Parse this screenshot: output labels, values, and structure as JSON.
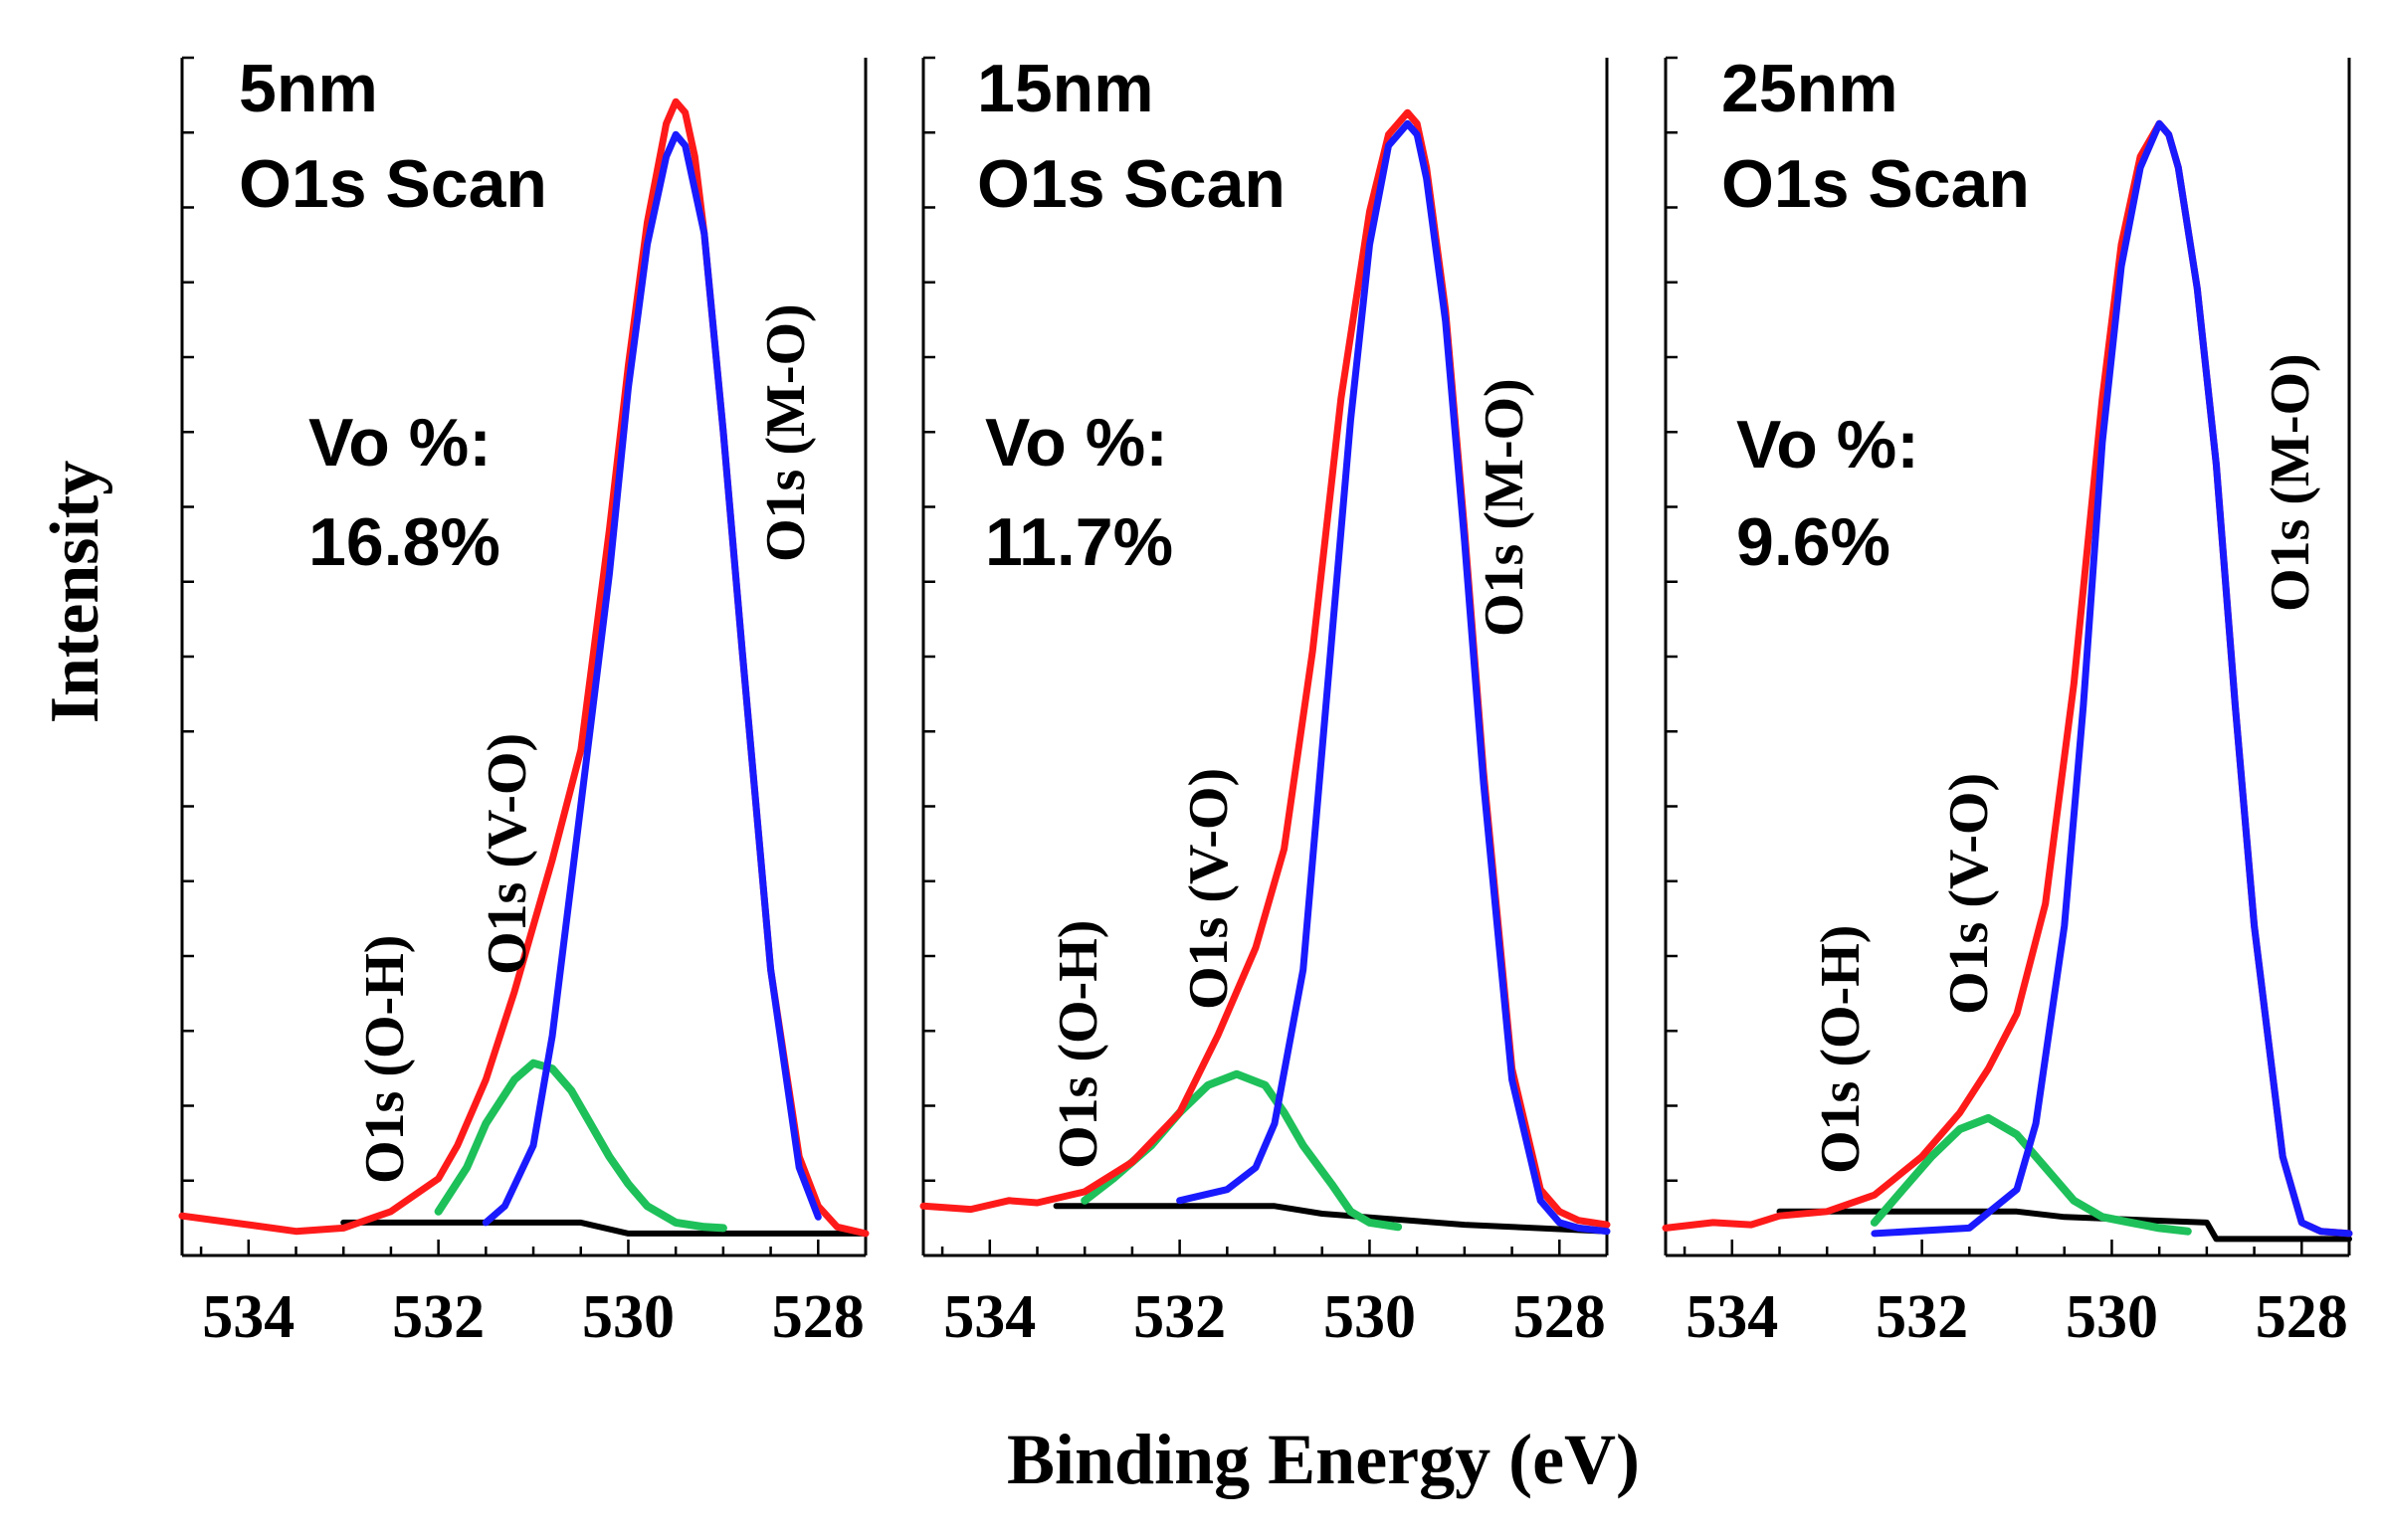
{
  "figure": {
    "ylabel": "Intensity",
    "xlabel": "Binding Energy (eV)"
  },
  "colors": {
    "raw": "#ff1a1a",
    "m_o": "#1a1aff",
    "v_o": "#1ec05a",
    "baseline": "#000000"
  },
  "chart_data": [
    {
      "type": "line",
      "title": "5nm",
      "subtitle": "O1s Scan",
      "vo_label": "Vo %:",
      "vo_value": "16.8%",
      "peak_labels": {
        "oh": "O1s (O-H)",
        "vo": "O1s (V-O)",
        "mo": "O1s (M-O)"
      },
      "xlim": [
        534.7,
        527.5
      ],
      "xticks": [
        534,
        532,
        530,
        528
      ],
      "ylim": [
        0,
        1.09
      ],
      "grid": false,
      "series": [
        {
          "key": "raw",
          "x": [
            534.7,
            534.0,
            533.5,
            533.0,
            532.5,
            532.0,
            531.8,
            531.5,
            531.2,
            531.0,
            530.8,
            530.5,
            530.2,
            530.0,
            529.8,
            529.6,
            529.5,
            529.4,
            529.3,
            529.2,
            529.0,
            528.8,
            528.5,
            528.2,
            528.0,
            527.8,
            527.5
          ],
          "y": [
            0.036,
            0.028,
            0.022,
            0.025,
            0.04,
            0.07,
            0.1,
            0.16,
            0.24,
            0.3,
            0.36,
            0.46,
            0.66,
            0.81,
            0.94,
            1.03,
            1.05,
            1.04,
            1.0,
            0.93,
            0.75,
            0.55,
            0.26,
            0.09,
            0.045,
            0.026,
            0.02
          ]
        },
        {
          "key": "m_o",
          "x": [
            531.5,
            531.3,
            531.0,
            530.8,
            530.5,
            530.2,
            530.0,
            529.8,
            529.6,
            529.5,
            529.4,
            529.2,
            529.0,
            528.8,
            528.5,
            528.2,
            528.0
          ],
          "y": [
            0.03,
            0.045,
            0.1,
            0.2,
            0.41,
            0.62,
            0.79,
            0.92,
            1.0,
            1.02,
            1.01,
            0.93,
            0.75,
            0.55,
            0.26,
            0.08,
            0.035
          ]
        },
        {
          "key": "v_o",
          "x": [
            532.0,
            531.7,
            531.5,
            531.2,
            531.0,
            530.8,
            530.6,
            530.4,
            530.2,
            530.0,
            529.8,
            529.5,
            529.2,
            529.0
          ],
          "y": [
            0.04,
            0.08,
            0.12,
            0.16,
            0.175,
            0.17,
            0.15,
            0.12,
            0.09,
            0.065,
            0.045,
            0.03,
            0.026,
            0.025
          ]
        },
        {
          "key": "baseline",
          "x": [
            533.0,
            530.5,
            530.0,
            527.5
          ],
          "y": [
            0.03,
            0.03,
            0.02,
            0.02
          ]
        }
      ]
    },
    {
      "type": "line",
      "title": "15nm",
      "subtitle": "O1s Scan",
      "vo_label": "Vo %:",
      "vo_value": "11.7%",
      "peak_labels": {
        "oh": "O1s (O-H)",
        "vo": "O1s (V-O)",
        "mo": "O1s (M-O)"
      },
      "xlim": [
        534.7,
        527.5
      ],
      "xticks": [
        534,
        532,
        530,
        528
      ],
      "ylim": [
        0,
        1.09
      ],
      "grid": false,
      "series": [
        {
          "key": "raw",
          "x": [
            534.7,
            534.2,
            533.8,
            533.5,
            533.0,
            532.5,
            532.0,
            531.6,
            531.2,
            530.9,
            530.6,
            530.3,
            530.0,
            529.8,
            529.6,
            529.5,
            529.4,
            529.2,
            529.0,
            528.8,
            528.5,
            528.2,
            528.0,
            527.8,
            527.5
          ],
          "y": [
            0.045,
            0.042,
            0.05,
            0.048,
            0.058,
            0.085,
            0.13,
            0.2,
            0.28,
            0.37,
            0.55,
            0.78,
            0.95,
            1.02,
            1.04,
            1.03,
            0.99,
            0.86,
            0.66,
            0.44,
            0.17,
            0.06,
            0.04,
            0.032,
            0.028
          ]
        },
        {
          "key": "m_o",
          "x": [
            532.0,
            531.5,
            531.2,
            531.0,
            530.7,
            530.4,
            530.2,
            530.0,
            529.8,
            529.6,
            529.5,
            529.4,
            529.2,
            529.0,
            528.8,
            528.5,
            528.2,
            528.0,
            527.8,
            527.5
          ],
          "y": [
            0.05,
            0.06,
            0.08,
            0.12,
            0.26,
            0.56,
            0.76,
            0.92,
            1.01,
            1.03,
            1.02,
            0.98,
            0.85,
            0.65,
            0.43,
            0.16,
            0.05,
            0.03,
            0.025,
            0.022
          ]
        },
        {
          "key": "v_o",
          "x": [
            533.0,
            532.7,
            532.3,
            532.0,
            531.7,
            531.4,
            531.1,
            530.9,
            530.7,
            530.4,
            530.2,
            530.0,
            529.7
          ],
          "y": [
            0.05,
            0.07,
            0.1,
            0.13,
            0.155,
            0.165,
            0.155,
            0.13,
            0.1,
            0.065,
            0.04,
            0.03,
            0.026
          ]
        },
        {
          "key": "baseline",
          "x": [
            533.3,
            531.0,
            530.5,
            529.0,
            527.5
          ],
          "y": [
            0.045,
            0.045,
            0.038,
            0.028,
            0.022
          ]
        }
      ]
    },
    {
      "type": "line",
      "title": "25nm",
      "subtitle": "O1s Scan",
      "vo_label": "Vo %:",
      "vo_value": "9.6%",
      "peak_labels": {
        "oh": "O1s (O-H)",
        "vo": "O1s (V-O)",
        "mo": "O1s (M-O)"
      },
      "xlim": [
        534.7,
        527.5
      ],
      "xticks": [
        534,
        532,
        530,
        528
      ],
      "ylim": [
        0,
        1.09
      ],
      "grid": false,
      "series": [
        {
          "key": "raw",
          "x": [
            534.7,
            534.2,
            533.8,
            533.5,
            533.0,
            532.5,
            532.0,
            531.6,
            531.3,
            531.0,
            530.7,
            530.4,
            530.1,
            529.9,
            529.7,
            529.5,
            529.4,
            529.3,
            529.1,
            528.9,
            528.7,
            528.5,
            528.2,
            528.0,
            527.8,
            527.5
          ],
          "y": [
            0.025,
            0.03,
            0.028,
            0.036,
            0.04,
            0.055,
            0.09,
            0.13,
            0.17,
            0.22,
            0.32,
            0.52,
            0.78,
            0.92,
            1.0,
            1.03,
            1.02,
            0.99,
            0.88,
            0.72,
            0.5,
            0.3,
            0.09,
            0.03,
            0.022,
            0.02
          ]
        },
        {
          "key": "m_o",
          "x": [
            532.5,
            531.5,
            531.0,
            530.8,
            530.5,
            530.3,
            530.1,
            529.9,
            529.7,
            529.5,
            529.4,
            529.3,
            529.1,
            528.9,
            528.7,
            528.5,
            528.2,
            528.0,
            527.8,
            527.5
          ],
          "y": [
            0.02,
            0.025,
            0.06,
            0.12,
            0.3,
            0.5,
            0.74,
            0.9,
            0.99,
            1.03,
            1.02,
            0.99,
            0.88,
            0.72,
            0.5,
            0.3,
            0.09,
            0.03,
            0.022,
            0.02
          ]
        },
        {
          "key": "v_o",
          "x": [
            532.5,
            532.2,
            531.9,
            531.6,
            531.3,
            531.0,
            530.7,
            530.4,
            530.1,
            529.8,
            529.5,
            529.2
          ],
          "y": [
            0.03,
            0.06,
            0.09,
            0.115,
            0.125,
            0.11,
            0.08,
            0.05,
            0.035,
            0.03,
            0.025,
            0.022
          ]
        },
        {
          "key": "baseline",
          "x": [
            533.5,
            531.0,
            530.5,
            529.0,
            528.9,
            527.5
          ],
          "y": [
            0.04,
            0.04,
            0.035,
            0.03,
            0.015,
            0.015
          ]
        }
      ]
    }
  ]
}
